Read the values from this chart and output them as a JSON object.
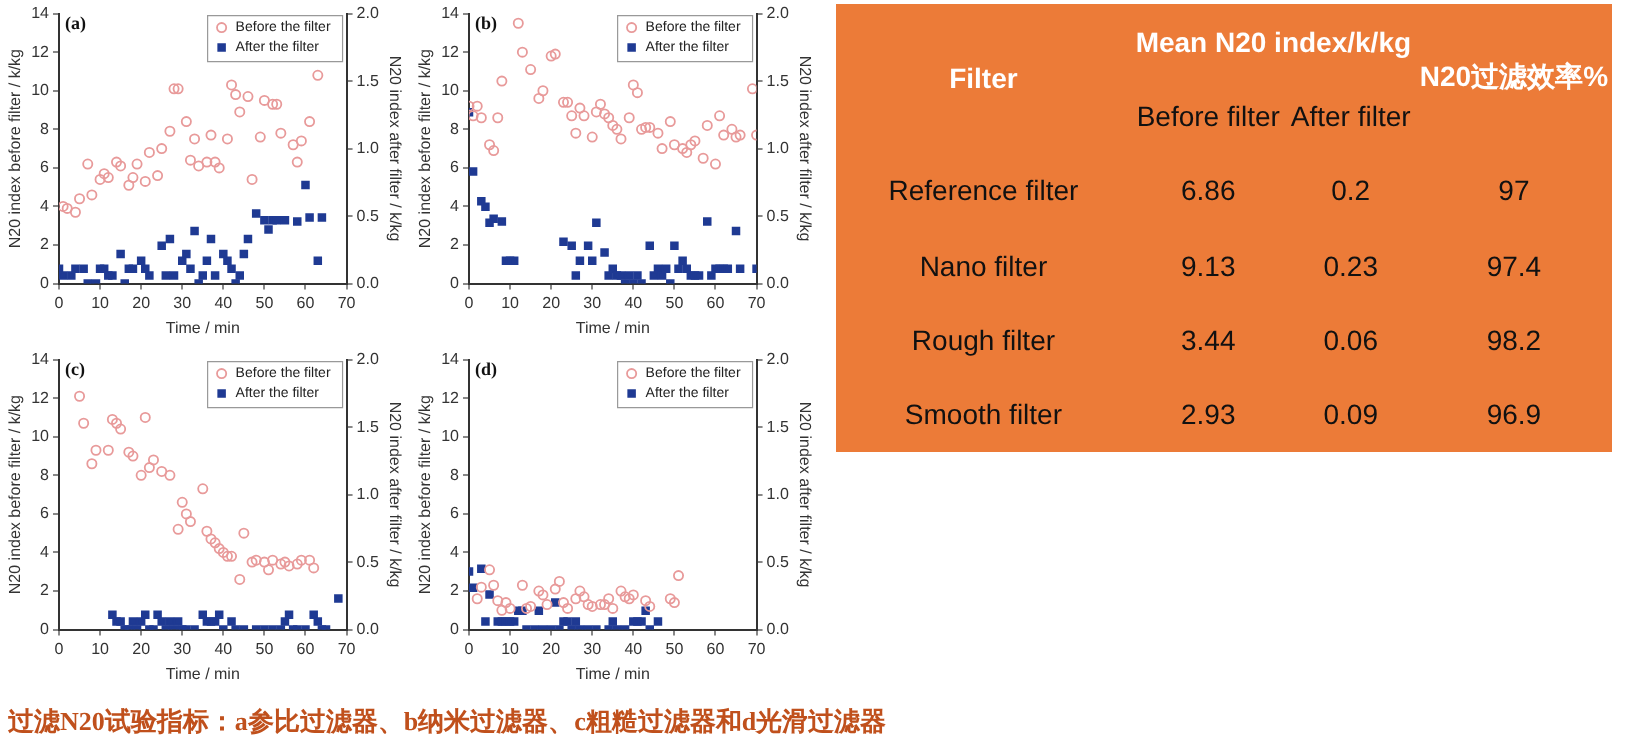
{
  "chart_data": [
    {
      "type": "scatter",
      "title": "(a)",
      "xlabel": "Time / min",
      "ylabel": "N20 index before filter / k/kg",
      "y2label": "N20 index after filter / k/kg",
      "legend": "top right",
      "grid": false,
      "xlim": [
        0,
        70
      ],
      "xticks": [
        0,
        10,
        20,
        30,
        40,
        50,
        60,
        70
      ],
      "ylim": [
        0,
        14
      ],
      "yticks": [
        0,
        2,
        4,
        6,
        8,
        10,
        12,
        14
      ],
      "y2lim": [
        0,
        2
      ],
      "y2ticks": [
        {
          "value": 0,
          "label": "0.0"
        },
        {
          "value": 0.5,
          "label": "0.5"
        },
        {
          "value": 1,
          "label": "1.0"
        },
        {
          "value": 1.5,
          "label": "1.5"
        },
        {
          "value": 2,
          "label": "2.0"
        }
      ],
      "series": [
        {
          "name": "Before the filter",
          "color": "#e89a9a",
          "marker": "circle",
          "x": [
            1,
            2,
            4,
            5,
            7,
            8,
            10,
            11,
            12,
            14,
            15,
            17,
            18,
            19,
            21,
            22,
            24,
            25,
            27,
            28,
            29,
            31,
            32,
            33,
            34,
            36,
            37,
            38,
            39,
            41,
            42,
            43,
            44,
            46,
            47,
            49,
            50,
            52,
            53,
            54,
            57,
            58,
            59,
            61,
            63
          ],
          "values": [
            4.0,
            3.9,
            3.7,
            4.4,
            6.2,
            4.6,
            5.4,
            5.7,
            5.5,
            6.3,
            6.1,
            5.1,
            5.5,
            6.2,
            5.3,
            6.8,
            5.6,
            7.0,
            7.9,
            10.1,
            10.1,
            8.4,
            6.4,
            7.5,
            6.1,
            6.3,
            7.7,
            6.3,
            6.0,
            7.5,
            10.3,
            9.8,
            8.9,
            9.7,
            5.4,
            7.6,
            9.5,
            9.3,
            9.3,
            7.8,
            7.2,
            6.3,
            7.4,
            8.4,
            10.8
          ]
        },
        {
          "name": "After the filter",
          "color": "#1f3a93",
          "marker": "square",
          "axis": "y2",
          "x": [
            0,
            1,
            3,
            4,
            6,
            7,
            9,
            10,
            11,
            12,
            13,
            15,
            16,
            17,
            18,
            20,
            21,
            22,
            25,
            26,
            27,
            28,
            30,
            31,
            32,
            33,
            34,
            35,
            36,
            37,
            38,
            40,
            41,
            42,
            43,
            44,
            45,
            46,
            48,
            50,
            51,
            52,
            53,
            55,
            58,
            60,
            61,
            63,
            64
          ],
          "values": [
            0.11,
            0.06,
            0.06,
            0.11,
            0.11,
            0.0,
            0.0,
            0.11,
            0.11,
            0.06,
            0.06,
            0.22,
            0.0,
            0.11,
            0.11,
            0.17,
            0.11,
            0.06,
            0.28,
            0.06,
            0.33,
            0.06,
            0.17,
            0.22,
            0.11,
            0.39,
            0.0,
            0.06,
            0.17,
            0.33,
            0.06,
            0.22,
            0.17,
            0.11,
            0.0,
            0.06,
            0.22,
            0.33,
            0.52,
            0.47,
            0.4,
            0.47,
            0.47,
            0.47,
            0.46,
            0.73,
            0.49,
            0.17,
            0.49
          ]
        }
      ]
    },
    {
      "type": "scatter",
      "title": "(b)",
      "xlabel": "Time / min",
      "ylabel": "N20 index before filter / k/kg",
      "y2label": "N20 index after filter / k/kg",
      "legend": "top right",
      "grid": false,
      "xlim": [
        0,
        70
      ],
      "xticks": [
        0,
        10,
        20,
        30,
        40,
        50,
        60,
        70
      ],
      "ylim": [
        0,
        14
      ],
      "yticks": [
        0,
        2,
        4,
        6,
        8,
        10,
        12,
        14
      ],
      "y2lim": [
        0,
        2
      ],
      "y2ticks": [
        {
          "value": 0,
          "label": "0.0"
        },
        {
          "value": 0.5,
          "label": "0.5"
        },
        {
          "value": 1,
          "label": "1.0"
        },
        {
          "value": 1.5,
          "label": "1.5"
        },
        {
          "value": 2,
          "label": "2.0"
        }
      ],
      "series": [
        {
          "name": "Before the filter",
          "color": "#e89a9a",
          "marker": "circle",
          "x": [
            0,
            1,
            2,
            3,
            5,
            6,
            7,
            8,
            12,
            13,
            15,
            17,
            18,
            20,
            21,
            23,
            24,
            25,
            26,
            27,
            28,
            30,
            31,
            32,
            33,
            34,
            35,
            36,
            37,
            39,
            40,
            41,
            42,
            43,
            44,
            46,
            47,
            49,
            50,
            52,
            53,
            54,
            55,
            57,
            58,
            60,
            61,
            62,
            64,
            65,
            66,
            69,
            70
          ],
          "values": [
            9.2,
            8.7,
            9.2,
            8.6,
            7.2,
            6.9,
            8.6,
            10.5,
            13.5,
            12.0,
            11.1,
            9.6,
            10.0,
            11.8,
            11.9,
            9.4,
            9.4,
            8.7,
            7.8,
            9.1,
            8.7,
            7.6,
            8.9,
            9.3,
            8.8,
            8.6,
            8.2,
            8.0,
            7.5,
            8.6,
            10.3,
            9.9,
            8.0,
            8.1,
            8.1,
            7.8,
            7.0,
            8.4,
            7.2,
            7.0,
            6.8,
            7.2,
            7.4,
            6.5,
            8.2,
            6.2,
            8.7,
            7.7,
            8.0,
            7.6,
            7.7,
            10.1,
            7.7
          ]
        },
        {
          "name": "After the filter",
          "color": "#1f3a93",
          "marker": "square",
          "axis": "y2",
          "x": [
            0,
            1,
            3,
            4,
            5,
            6,
            8,
            9,
            10,
            11,
            23,
            25,
            26,
            27,
            29,
            30,
            31,
            33,
            34,
            35,
            36,
            37,
            38,
            39,
            40,
            41,
            42,
            44,
            45,
            46,
            47,
            48,
            49,
            50,
            51,
            52,
            53,
            54,
            55,
            56,
            58,
            59,
            60,
            61,
            62,
            63,
            65,
            66,
            70
          ],
          "values": [
            1.27,
            0.83,
            0.61,
            0.57,
            0.45,
            0.48,
            0.46,
            0.17,
            0.17,
            0.17,
            0.31,
            0.28,
            0.06,
            0.17,
            0.28,
            0.17,
            0.45,
            0.23,
            0.06,
            0.11,
            0.06,
            0.06,
            0.0,
            0.06,
            0.0,
            0.06,
            0.0,
            0.28,
            0.06,
            0.11,
            0.06,
            0.11,
            0.0,
            0.28,
            0.11,
            0.17,
            0.11,
            0.06,
            0.06,
            0.06,
            0.46,
            0.06,
            0.11,
            0.11,
            0.11,
            0.11,
            0.39,
            0.11,
            0.11
          ]
        }
      ]
    },
    {
      "type": "scatter",
      "title": "(c)",
      "xlabel": "Time / min",
      "ylabel": "N20 index before filter / k/kg",
      "y2label": "N20 index after filter / k/kg",
      "legend": "top right",
      "grid": false,
      "xlim": [
        0,
        70
      ],
      "xticks": [
        0,
        10,
        20,
        30,
        40,
        50,
        60,
        70
      ],
      "ylim": [
        0,
        14
      ],
      "yticks": [
        0,
        2,
        4,
        6,
        8,
        10,
        12,
        14
      ],
      "y2lim": [
        0,
        2
      ],
      "y2ticks": [
        {
          "value": 0,
          "label": "0.0"
        },
        {
          "value": 0.5,
          "label": "0.5"
        },
        {
          "value": 1,
          "label": "1.0"
        },
        {
          "value": 1.5,
          "label": "1.5"
        },
        {
          "value": 2,
          "label": "2.0"
        }
      ],
      "series": [
        {
          "name": "Before the filter",
          "color": "#e89a9a",
          "marker": "circle",
          "x": [
            5,
            6,
            8,
            9,
            12,
            13,
            14,
            15,
            17,
            18,
            20,
            21,
            22,
            23,
            25,
            27,
            29,
            30,
            31,
            32,
            35,
            36,
            37,
            38,
            39,
            40,
            41,
            42,
            44,
            45,
            47,
            48,
            50,
            51,
            52,
            54,
            55,
            56,
            58,
            59,
            61,
            62
          ],
          "values": [
            12.1,
            10.7,
            8.6,
            9.3,
            9.3,
            10.9,
            10.7,
            10.4,
            9.2,
            9.0,
            8.0,
            11.0,
            8.4,
            8.8,
            8.2,
            8.0,
            5.2,
            6.6,
            6.0,
            5.6,
            7.3,
            5.1,
            4.7,
            4.5,
            4.2,
            4.0,
            3.8,
            3.8,
            2.6,
            5.0,
            3.5,
            3.6,
            3.5,
            3.1,
            3.6,
            3.4,
            3.5,
            3.3,
            3.4,
            3.6,
            3.6,
            3.2
          ]
        },
        {
          "name": "After the filter",
          "color": "#1f3a93",
          "marker": "square",
          "axis": "y2",
          "x": [
            13,
            14,
            15,
            16,
            17,
            18,
            19,
            20,
            21,
            22,
            23,
            24,
            25,
            26,
            27,
            28,
            29,
            30,
            31,
            33,
            35,
            36,
            37,
            38,
            39,
            40,
            42,
            43,
            45,
            48,
            50,
            52,
            54,
            55,
            56,
            57,
            58,
            60,
            62,
            63,
            64,
            65,
            68
          ],
          "values": [
            0.11,
            0.06,
            0.06,
            0.0,
            0.0,
            0.06,
            0.0,
            0.06,
            0.11,
            0.0,
            0.0,
            0.11,
            0.06,
            0.0,
            0.06,
            0.0,
            0.06,
            0.0,
            0.0,
            0.0,
            0.11,
            0.06,
            0.06,
            0.06,
            0.11,
            0.0,
            0.06,
            0.0,
            0.0,
            0.0,
            0.0,
            0.0,
            0.0,
            0.06,
            0.11,
            0.0,
            0.0,
            0.0,
            0.11,
            0.06,
            0.0,
            0.0,
            0.23
          ]
        }
      ]
    },
    {
      "type": "scatter",
      "title": "(d)",
      "xlabel": "Time / min",
      "ylabel": "N20 index before filter / k/kg",
      "y2label": "N20 index after filter / k/kg",
      "legend": "top right",
      "grid": false,
      "xlim": [
        0,
        70
      ],
      "xticks": [
        0,
        10,
        20,
        30,
        40,
        50,
        60,
        70
      ],
      "ylim": [
        0,
        14
      ],
      "yticks": [
        0,
        2,
        4,
        6,
        8,
        10,
        12,
        14
      ],
      "y2lim": [
        0,
        2
      ],
      "y2ticks": [
        {
          "value": 0,
          "label": "0.0"
        },
        {
          "value": 0.5,
          "label": "0.5"
        },
        {
          "value": 1,
          "label": "1.0"
        },
        {
          "value": 1.5,
          "label": "1.5"
        },
        {
          "value": 2,
          "label": "2.0"
        }
      ],
      "series": [
        {
          "name": "Before the filter",
          "color": "#e89a9a",
          "marker": "circle",
          "x": [
            2,
            3,
            5,
            6,
            7,
            8,
            9,
            10,
            13,
            14,
            15,
            17,
            18,
            19,
            21,
            22,
            23,
            24,
            26,
            27,
            28,
            29,
            30,
            32,
            33,
            34,
            35,
            37,
            38,
            39,
            40,
            43,
            44,
            49,
            50,
            51
          ],
          "values": [
            1.6,
            2.2,
            3.1,
            2.3,
            1.5,
            1.0,
            1.4,
            1.1,
            2.3,
            1.1,
            1.2,
            2.0,
            1.8,
            1.3,
            2.1,
            2.5,
            1.4,
            1.1,
            1.6,
            2.0,
            1.7,
            1.3,
            1.2,
            1.3,
            1.3,
            1.6,
            1.1,
            2.0,
            1.7,
            1.6,
            1.8,
            1.5,
            1.2,
            1.6,
            1.4,
            2.8
          ]
        },
        {
          "name": "After the filter",
          "color": "#1f3a93",
          "marker": "square",
          "axis": "y2",
          "x": [
            0,
            1,
            3,
            4,
            5,
            7,
            8,
            9,
            10,
            11,
            12,
            13,
            14,
            16,
            17,
            18,
            20,
            21,
            22,
            23,
            24,
            25,
            26,
            27,
            29,
            31,
            34,
            35,
            36,
            38,
            40,
            41,
            42,
            43,
            44,
            46
          ],
          "values": [
            0.43,
            0.31,
            0.45,
            0.06,
            0.26,
            0.06,
            0.06,
            0.06,
            0.06,
            0.06,
            0.14,
            0.14,
            0.0,
            0.0,
            0.14,
            0.0,
            0.0,
            0.2,
            0.0,
            0.06,
            0.06,
            0.0,
            0.06,
            0.0,
            0.0,
            0.0,
            0.0,
            0.06,
            0.0,
            0.0,
            0.06,
            0.06,
            0.06,
            0.14,
            0.0,
            0.06
          ]
        }
      ]
    },
    {
      "type": "other",
      "annotations": [
        "Filter",
        "Mean N20 index/k/kg",
        "过滤N20试验指标：a参比过滤器、b纳米过滤器、c粗糙过滤器和d光滑过滤器"
      ],
      "categories": [
        "Reference filter",
        "Nano filter",
        "Rough filter",
        "Smooth filter"
      ],
      "data_labels": true,
      "series": [
        {
          "name": "Before filter",
          "values": [
            6.86,
            9.13,
            3.44,
            2.93
          ]
        },
        {
          "name": "After filter",
          "values": [
            0.2,
            0.23,
            0.06,
            0.09
          ]
        },
        {
          "name": "N20过滤效率%",
          "values": [
            97,
            97.4,
            98.2,
            96.9
          ]
        }
      ]
    }
  ]
}
